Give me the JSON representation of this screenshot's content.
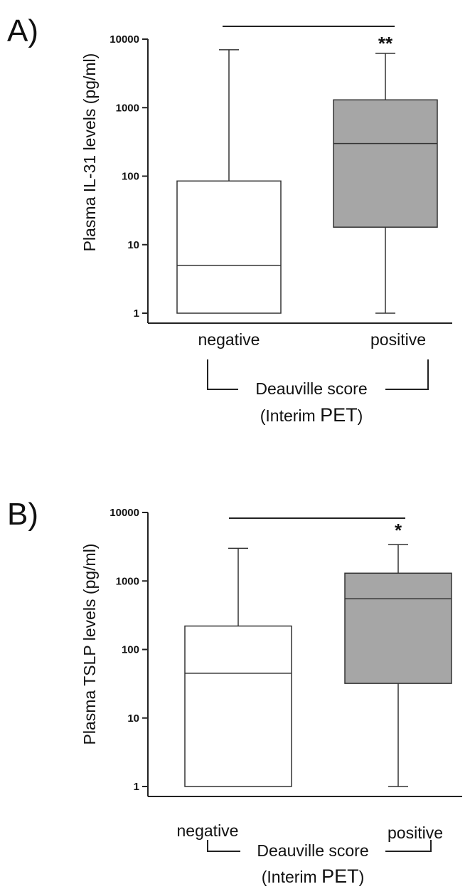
{
  "chart_data": [
    {
      "type": "box",
      "panel": "A)",
      "ylabel": "Plasma IL-31 levels (pg/ml)",
      "yscale": "log",
      "ylim": [
        1,
        10000
      ],
      "yticks": [
        "1",
        "10",
        "100",
        "1000",
        "10000"
      ],
      "categories": [
        "negative",
        "positive"
      ],
      "boxes": [
        {
          "category": "negative",
          "min": 1,
          "q1": 1,
          "median": 5,
          "q3": 85,
          "max": 7000,
          "fill": "#ffffff"
        },
        {
          "category": "positive",
          "min": 1,
          "q1": 18,
          "median": 300,
          "q3": 1300,
          "max": 6200,
          "fill": "#a6a6a6"
        }
      ],
      "significance": "**",
      "group_label": "Deauville score",
      "group_sublabel_prefix": "(Interim ",
      "group_sublabel_emph": "PET",
      "group_sublabel_suffix": ")"
    },
    {
      "type": "box",
      "panel": "B)",
      "ylabel": "Plasma TSLP levels (pg/ml)",
      "yscale": "log",
      "ylim": [
        1,
        10000
      ],
      "yticks": [
        "1",
        "10",
        "100",
        "1000",
        "10000"
      ],
      "categories": [
        "negative",
        "positive"
      ],
      "boxes": [
        {
          "category": "negative",
          "min": 1,
          "q1": 1,
          "median": 45,
          "q3": 220,
          "max": 3000,
          "fill": "#ffffff"
        },
        {
          "category": "positive",
          "min": 1,
          "q1": 32,
          "median": 550,
          "q3": 1300,
          "max": 3400,
          "fill": "#a6a6a6"
        }
      ],
      "significance": "*",
      "group_label": "Deauville score",
      "group_sublabel_prefix": "(Interim ",
      "group_sublabel_emph": "PET",
      "group_sublabel_suffix": ")"
    }
  ]
}
